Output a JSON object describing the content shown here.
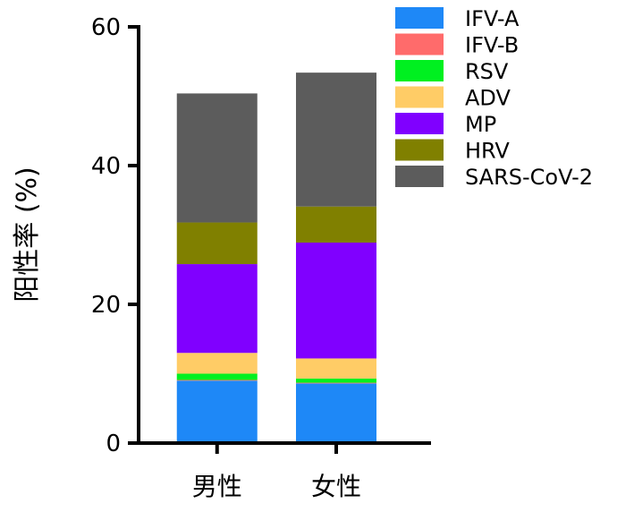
{
  "chart_data": {
    "type": "bar",
    "stacked": true,
    "categories": [
      "男性",
      "女性"
    ],
    "ylabel": "阳性率 (%)",
    "xlabel": "",
    "ylim": [
      0,
      60
    ],
    "yticks": [
      0,
      20,
      40,
      60
    ],
    "legend_position": "top-right",
    "grid": false,
    "series": [
      {
        "name": "IFV-A",
        "color": "#1E88F7",
        "values": [
          9.0,
          8.6
        ]
      },
      {
        "name": "IFV-B",
        "color": "#FF6B6B",
        "values": [
          0.1,
          0.1
        ]
      },
      {
        "name": "RSV",
        "color": "#00F020",
        "values": [
          0.9,
          0.6
        ]
      },
      {
        "name": "ADV",
        "color": "#FFCC66",
        "values": [
          3.0,
          2.9
        ]
      },
      {
        "name": "MP",
        "color": "#8000FF",
        "values": [
          12.8,
          16.7
        ]
      },
      {
        "name": "HRV",
        "color": "#808000",
        "values": [
          6.0,
          5.2
        ]
      },
      {
        "name": "SARS-CoV-2",
        "color": "#5C5C5C",
        "values": [
          18.6,
          19.3
        ]
      }
    ]
  }
}
